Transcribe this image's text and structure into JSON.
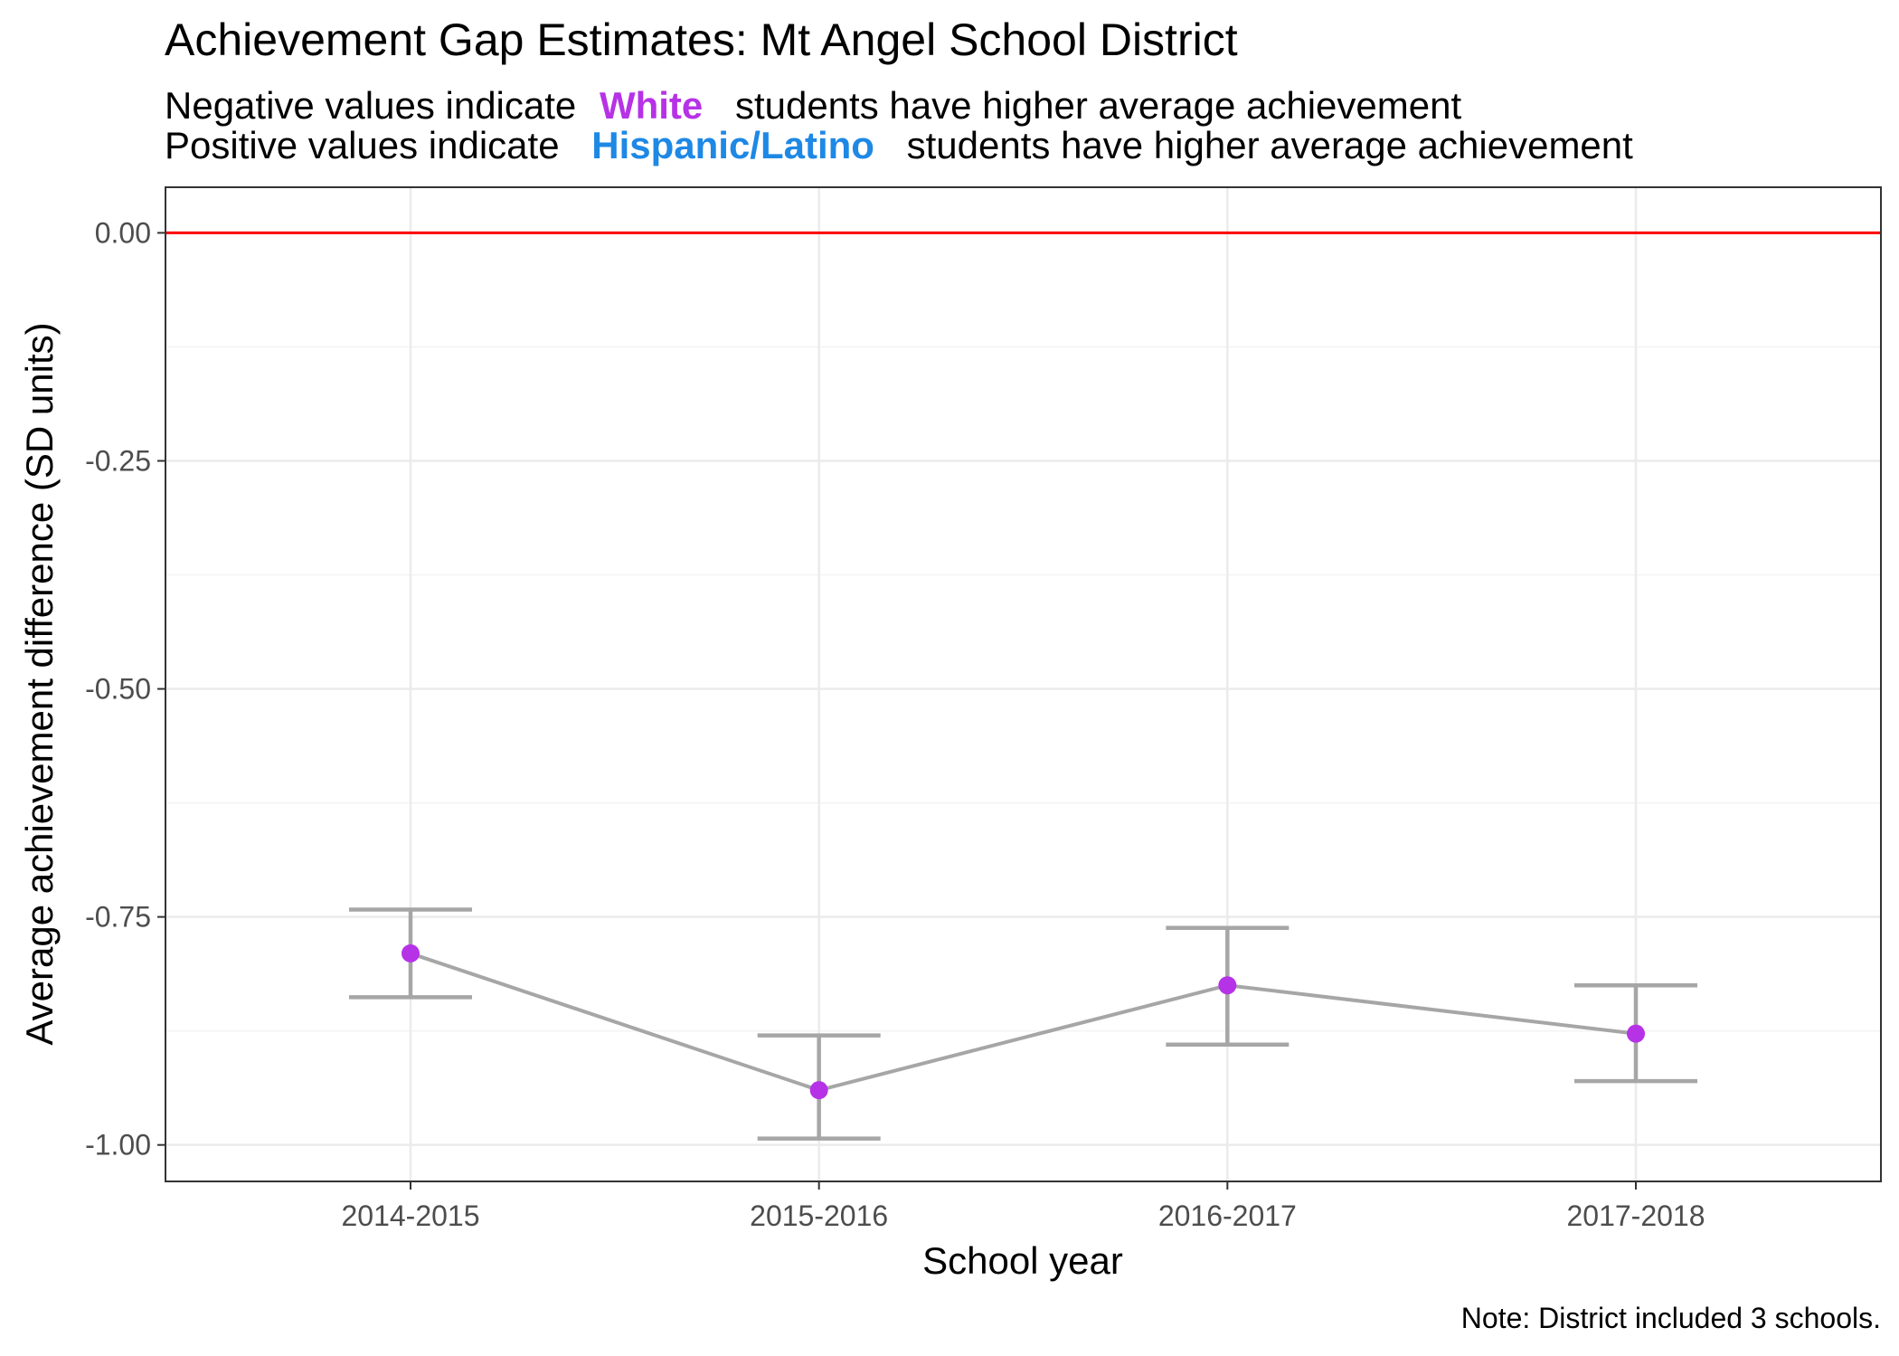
{
  "title": "Achievement Gap Estimates: Mt Angel School District",
  "subtitle": {
    "line1": {
      "before": "Negative values indicate",
      "group": "White",
      "after": "students have higher average achievement",
      "group_color": "#B632E6"
    },
    "line2": {
      "before": "Positive values indicate",
      "group": "Hispanic/Latino",
      "after": "students have higher average achievement",
      "group_color": "#1E88E5"
    }
  },
  "caption": "Note: District included 3 schools.",
  "colors": {
    "point": "#B632E6",
    "line": "#A6A6A6",
    "errorbar": "#A6A6A6",
    "reference_line": "#FF0000",
    "grid_major": "#EBEBEB",
    "grid_minor": "#F3F3F3",
    "panel_border": "#333333"
  },
  "chart_data": {
    "type": "line",
    "xlabel": "School year",
    "ylabel": "Average achievement difference (SD units)",
    "categories": [
      "2014-2015",
      "2015-2016",
      "2016-2017",
      "2017-2018"
    ],
    "series": [
      {
        "values": [
          -0.79,
          -0.94,
          -0.825,
          -0.878
        ],
        "lower": [
          -0.838,
          -0.993,
          -0.89,
          -0.93
        ],
        "upper": [
          -0.742,
          -0.88,
          -0.762,
          -0.825
        ]
      }
    ],
    "reference_line": 0,
    "ylim": [
      -1.04,
      0.05
    ],
    "yticks": [
      0,
      -0.25,
      -0.5,
      -0.75,
      -1
    ],
    "ytick_labels": [
      "0.00",
      "-0.25",
      "-0.50",
      "-0.75",
      "-1.00"
    ],
    "grid": true,
    "legend": "none"
  }
}
